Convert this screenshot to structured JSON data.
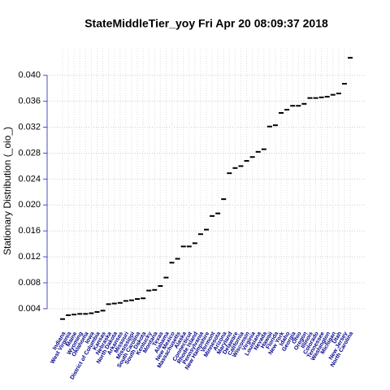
{
  "chart_data": {
    "type": "dot",
    "title": "StateMiddleTier_yoy  Fri Apr 20 08:09:37 2018",
    "y_label": "Stationary Distribution (_oio_)",
    "categories": [
      "Indiana",
      "West Virginia",
      "Maine",
      "Wyoming",
      "Oklahoma",
      "Iowa",
      "District of Columbia",
      "Kansas",
      "Nebraska",
      "North Dakota",
      "Arkansas",
      "Missouri",
      "Mississippi",
      "South Carolina",
      "South Dakota",
      "Kentucky",
      "Montana",
      "Texas",
      "Alabama",
      "New Mexico",
      "Massachusetts",
      "Alaska",
      "Connecticut",
      "Rhode Island",
      "Pennsylvania",
      "New Hampshire",
      "Vermont",
      "Minnesota",
      "Arizona",
      "Maryland",
      "Delaware",
      "California",
      "Wisconsin",
      "Virginia",
      "Louisiana",
      "Nevada",
      "Hawaii",
      "Florida",
      "New York",
      "Idaho",
      "Georgia",
      "Ohio",
      "Oregon",
      "Illinois",
      "Colorado",
      "Tennessee",
      "Washington",
      "Michigan",
      "Utah",
      "New Jersey",
      "North Carolina"
    ],
    "values": [
      0.0024,
      0.003,
      0.0031,
      0.0032,
      0.0032,
      0.0033,
      0.0035,
      0.0037,
      0.0047,
      0.0048,
      0.0049,
      0.0052,
      0.0053,
      0.0055,
      0.0056,
      0.0068,
      0.0069,
      0.0075,
      0.0088,
      0.0111,
      0.0117,
      0.0136,
      0.0136,
      0.0141,
      0.0155,
      0.0162,
      0.0183,
      0.0187,
      0.0209,
      0.0249,
      0.0257,
      0.026,
      0.0268,
      0.0274,
      0.0282,
      0.0286,
      0.0321,
      0.0323,
      0.0342,
      0.0347,
      0.0353,
      0.0353,
      0.0356,
      0.0365,
      0.0365,
      0.0366,
      0.0367,
      0.037,
      0.0372,
      0.0387,
      0.0427
    ],
    "color": "#000000",
    "label_color": "#00008b",
    "axis_color": "#4b4bc8",
    "ylim": [
      0.00086,
      0.0441
    ],
    "yticks": [
      0.004,
      0.008,
      0.012,
      0.016,
      {
        "value": 0.02,
        "label": "0.020"
      },
      0.024,
      0.028,
      0.032,
      0.036,
      {
        "value": 0.04,
        "label": "0.040"
      }
    ],
    "grid": true
  }
}
